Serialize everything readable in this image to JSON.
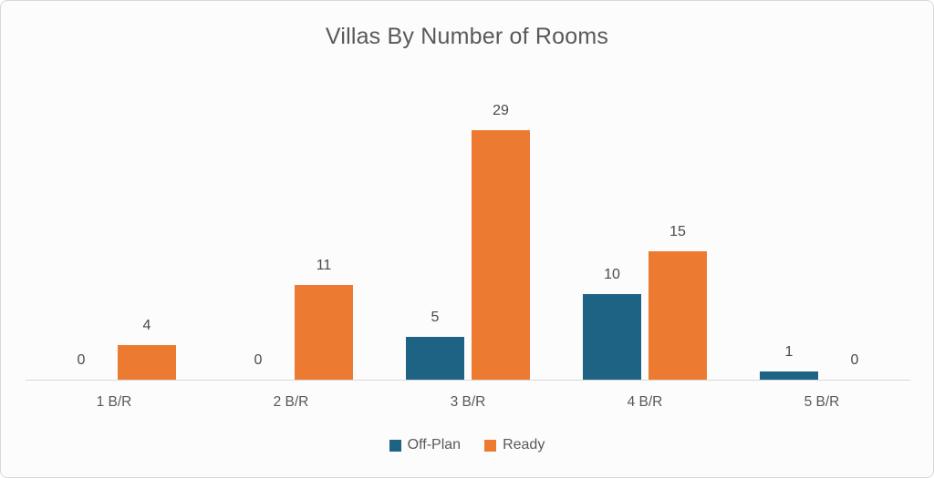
{
  "chart_data": {
    "type": "bar",
    "title": "Villas By Number of Rooms",
    "categories": [
      "1 B/R",
      "2 B/R",
      "3 B/R",
      "4 B/R",
      "5 B/R"
    ],
    "series": [
      {
        "name": "Off-Plan",
        "color": "#1E6384",
        "values": [
          0,
          0,
          5,
          10,
          1
        ]
      },
      {
        "name": "Ready",
        "color": "#EC7A31",
        "values": [
          4,
          11,
          29,
          15,
          0
        ]
      }
    ],
    "xlabel": "",
    "ylabel": "",
    "ylim": [
      0,
      30
    ],
    "grid": false,
    "legend_position": "bottom",
    "data_labels": true
  },
  "colors": {
    "title_text": "#595959",
    "value_label_text": "#4A4A4A",
    "axis_label_text": "#595959",
    "legend_text": "#595959",
    "axis_line": "#D9D9D9",
    "card_background": "#FCFCFC",
    "card_border": "#D8D8D8"
  }
}
